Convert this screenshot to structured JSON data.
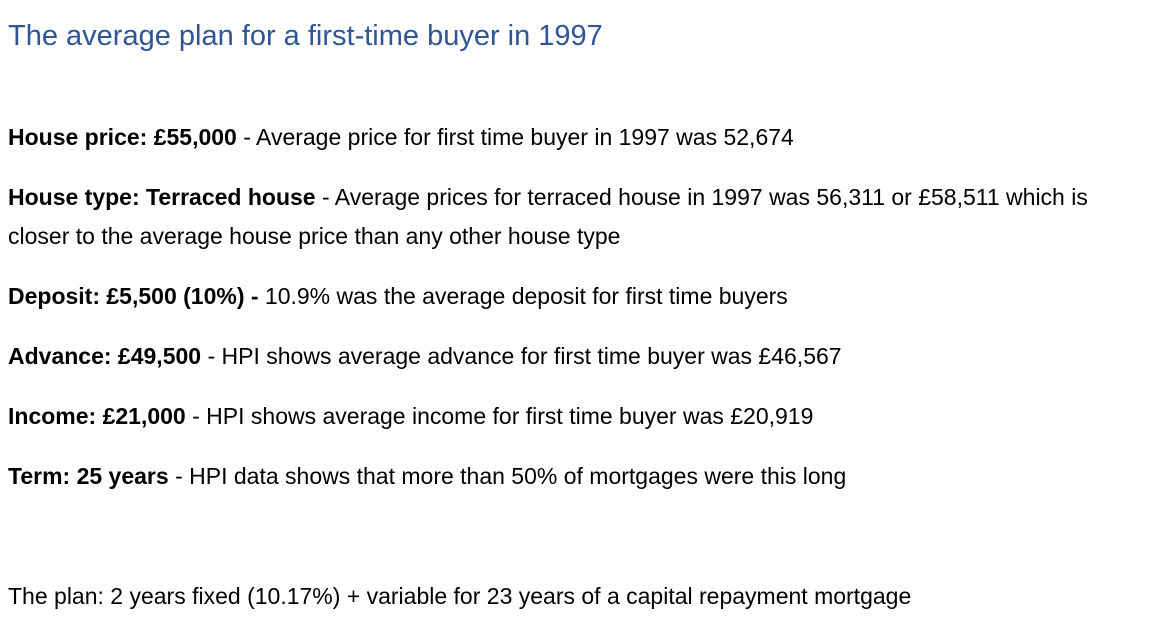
{
  "document": {
    "title": "The average plan for a first-time buyer in 1997",
    "items": [
      {
        "label": "House price: £55,000",
        "separator": " - ",
        "text": "Average price for first time buyer in 1997 was 52,674"
      },
      {
        "label": "House type: Terraced house",
        "separator": " - ",
        "text": "Average prices for terraced house in 1997 was 56,311 or £58,511 which is closer to the average house price than any other house type"
      },
      {
        "label": "Deposit: £5,500 (10%) -",
        "separator": " ",
        "text": "10.9% was the average deposit for first time buyers"
      },
      {
        "label": "Advance: £49,500",
        "separator": " - ",
        "text": "HPI shows average advance for first time buyer was £46,567"
      },
      {
        "label": "Income: £21,000",
        "separator": " - ",
        "text": "HPI shows average income for first time buyer was £20,919"
      },
      {
        "label": "Term: 25 years",
        "separator": " - ",
        "text": "HPI data shows that more than 50% of mortgages were this long"
      }
    ],
    "plan": "The plan: 2 years fixed (10.17%) + variable for 23 years of a capital repayment mortgage",
    "colors": {
      "title": "#2f5597",
      "body": "#000000"
    }
  }
}
